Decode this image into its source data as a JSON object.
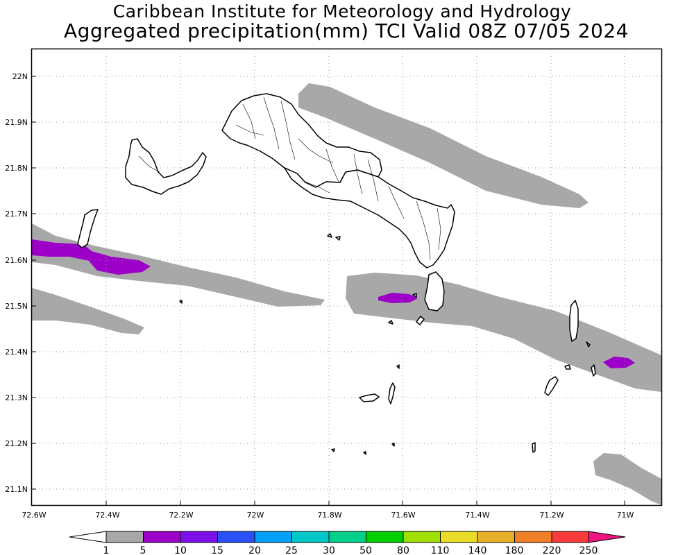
{
  "title": {
    "line1": "Caribbean Institute for Meteorology and Hydrology",
    "line2": "Aggregated precipitation(mm) TCI Valid 08Z 07/05 2024"
  },
  "map": {
    "region": "Turks and Caicos Islands",
    "lon_range": [
      -72.6,
      -70.9
    ],
    "lat_range": [
      21.05,
      22.05
    ],
    "grid": true,
    "lon_ticks": [
      "72.6W",
      "72.4W",
      "72.2W",
      "72W",
      "71.8W",
      "71.6W",
      "71.4W",
      "71.2W",
      "71W"
    ],
    "lat_ticks": [
      "22N",
      "21.9N",
      "21.8N",
      "21.7N",
      "21.6N",
      "21.5N",
      "21.4N",
      "21.3N",
      "21.2N",
      "21.1N"
    ],
    "colors": {
      "1-5": "#a8a8a8",
      "5-10": "#9c00c8"
    }
  },
  "colorbar": {
    "labels": [
      "1",
      "5",
      "10",
      "15",
      "20",
      "25",
      "30",
      "50",
      "80",
      "110",
      "140",
      "180",
      "220",
      "250"
    ],
    "colors": [
      "#a8a8a8",
      "#9c00c8",
      "#7d10e8",
      "#2a50f8",
      "#00a0f8",
      "#00c8c8",
      "#00d08a",
      "#00d000",
      "#a0e000",
      "#e8dc28",
      "#e8b028",
      "#f08028",
      "#f83c3c"
    ],
    "below_color": "#ffffff",
    "above_color": "#f0147f"
  }
}
